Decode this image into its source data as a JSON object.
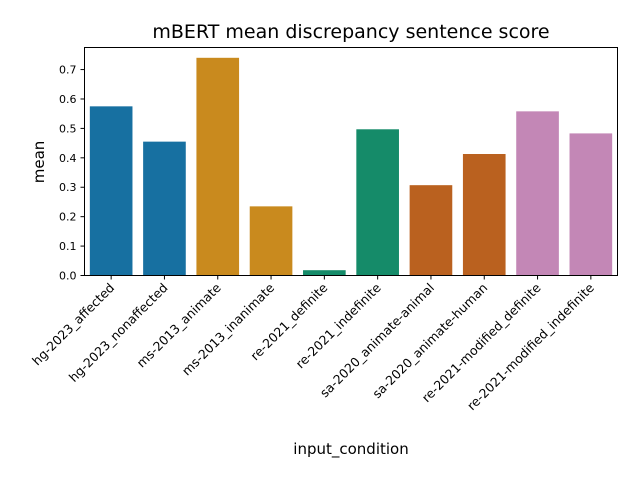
{
  "chart_data": {
    "type": "bar",
    "title": "mBERT mean discrepancy sentence score",
    "xlabel": "input_condition",
    "ylabel": "mean",
    "ylim": [
      0,
      0.775
    ],
    "yticks": [
      0.0,
      0.1,
      0.2,
      0.3,
      0.4,
      0.5,
      0.6,
      0.7
    ],
    "ytick_labels": [
      "0.0",
      "0.1",
      "0.2",
      "0.3",
      "0.4",
      "0.5",
      "0.6",
      "0.7"
    ],
    "grid": false,
    "categories": [
      "hg-2023_affected",
      "hg-2023_nonaffected",
      "ms-2013_animate",
      "ms-2013_inanimate",
      "re-2021_definite",
      "re-2021_indefinite",
      "sa-2020_animate-animal",
      "sa-2020_animate-human",
      "re-2021-modified_definite",
      "re-2021-modified_indefinite"
    ],
    "values": [
      0.575,
      0.455,
      0.74,
      0.235,
      0.018,
      0.497,
      0.307,
      0.413,
      0.558,
      0.483
    ],
    "colors": [
      "#1770a1",
      "#1770a1",
      "#c98a1e",
      "#c98a1e",
      "#158b69",
      "#158b69",
      "#ba611f",
      "#ba611f",
      "#c387b6",
      "#c387b6"
    ]
  }
}
